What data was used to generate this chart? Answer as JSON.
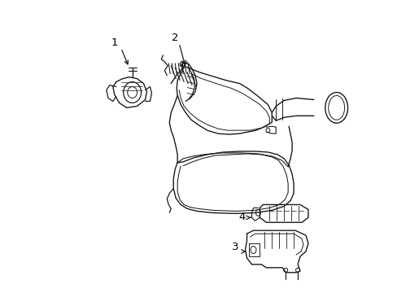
{
  "bg_color": "#ffffff",
  "line_color": "#1a1a1a",
  "label_color": "#000000",
  "lw": 0.9
}
